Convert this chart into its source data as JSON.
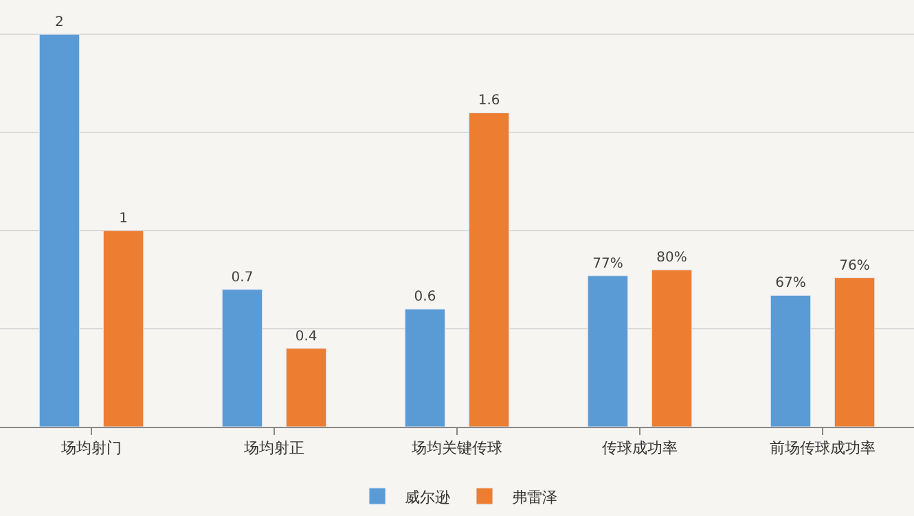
{
  "chart_data": {
    "type": "bar",
    "categories": [
      "场均射门",
      "场均射正",
      "场均关键传球",
      "传球成功率",
      "前场传球成功率"
    ],
    "series": [
      {
        "name": "威尔逊",
        "color": "#5b9bd5",
        "values": [
          2,
          0.7,
          0.6,
          0.77,
          0.67
        ],
        "value_labels": [
          "2",
          "0.7",
          "0.6",
          "77%",
          "67%"
        ]
      },
      {
        "name": "弗雷泽",
        "color": "#ed7d31",
        "values": [
          1,
          0.4,
          1.6,
          0.8,
          0.76
        ],
        "value_labels": [
          "1",
          "0.4",
          "1.6",
          "80%",
          "76%"
        ]
      }
    ],
    "yticks": [
      {
        "value": 0,
        "label": null
      },
      {
        "value": 0.5,
        "label": null
      },
      {
        "value": 1,
        "label": null
      },
      {
        "value": 1.5,
        "label": null
      },
      {
        "value": 2,
        "label": null
      }
    ],
    "grid": "y",
    "legend": "bottom",
    "tick_labels": "x"
  }
}
